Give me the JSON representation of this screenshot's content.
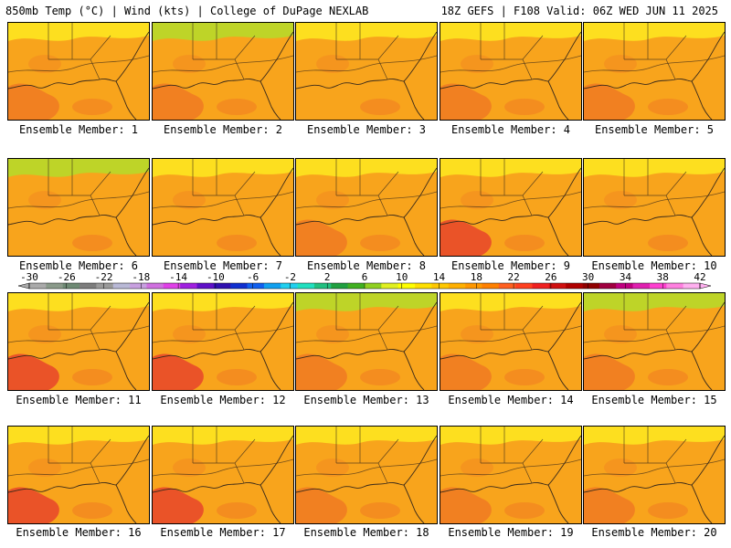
{
  "header": {
    "left": "850mb Temp (°C) | Wind (kts) | College of DuPage NEXLAB",
    "right": "18Z GEFS | F108 Valid: 06Z WED JUN 11 2025"
  },
  "members": [
    {
      "label": "Ensemble Member: 1",
      "tone": "orange",
      "cool_north": "yellow",
      "warm_sw": "orange-red"
    },
    {
      "label": "Ensemble Member: 2",
      "tone": "orange",
      "cool_north": "yellow-green",
      "warm_sw": "orange-red"
    },
    {
      "label": "Ensemble Member: 3",
      "tone": "orange",
      "cool_north": "yellow",
      "warm_sw": "orange"
    },
    {
      "label": "Ensemble Member: 4",
      "tone": "orange",
      "cool_north": "yellow",
      "warm_sw": "orange-red"
    },
    {
      "label": "Ensemble Member: 5",
      "tone": "orange",
      "cool_north": "yellow",
      "warm_sw": "orange-red"
    },
    {
      "label": "Ensemble Member: 6",
      "tone": "orange",
      "cool_north": "yellow-green",
      "warm_sw": "orange"
    },
    {
      "label": "Ensemble Member: 7",
      "tone": "orange",
      "cool_north": "yellow",
      "warm_sw": "orange"
    },
    {
      "label": "Ensemble Member: 8",
      "tone": "orange",
      "cool_north": "yellow",
      "warm_sw": "orange-red"
    },
    {
      "label": "Ensemble Member: 9",
      "tone": "orange",
      "cool_north": "yellow",
      "warm_sw": "red"
    },
    {
      "label": "Ensemble Member: 10",
      "tone": "orange",
      "cool_north": "yellow",
      "warm_sw": "orange"
    },
    {
      "label": "Ensemble Member: 11",
      "tone": "orange",
      "cool_north": "yellow",
      "warm_sw": "red"
    },
    {
      "label": "Ensemble Member: 12",
      "tone": "orange",
      "cool_north": "yellow",
      "warm_sw": "red"
    },
    {
      "label": "Ensemble Member: 13",
      "tone": "orange",
      "cool_north": "yellow-green",
      "warm_sw": "orange-red"
    },
    {
      "label": "Ensemble Member: 14",
      "tone": "orange",
      "cool_north": "yellow",
      "warm_sw": "orange-red"
    },
    {
      "label": "Ensemble Member: 15",
      "tone": "orange",
      "cool_north": "yellow-green",
      "warm_sw": "orange-red"
    },
    {
      "label": "Ensemble Member: 16",
      "tone": "orange",
      "cool_north": "yellow",
      "warm_sw": "red"
    },
    {
      "label": "Ensemble Member: 17",
      "tone": "orange",
      "cool_north": "yellow",
      "warm_sw": "red"
    },
    {
      "label": "Ensemble Member: 18",
      "tone": "orange",
      "cool_north": "yellow",
      "warm_sw": "orange-red"
    },
    {
      "label": "Ensemble Member: 19",
      "tone": "orange",
      "cool_north": "yellow",
      "warm_sw": "orange-red"
    },
    {
      "label": "Ensemble Member: 20",
      "tone": "orange",
      "cool_north": "yellow",
      "warm_sw": "orange-red"
    }
  ],
  "colorbar": {
    "ticks": [
      "-30",
      "-26",
      "-22",
      "-18",
      "-14",
      "-10",
      "-6",
      "-2",
      "2",
      "6",
      "10",
      "14",
      "18",
      "22",
      "26",
      "30",
      "34",
      "38",
      "42"
    ],
    "colors": [
      "#aaaaaa",
      "#8a9a8a",
      "#6e8a74",
      "#7d7d7d",
      "#9a9a9a",
      "#b9b9d6",
      "#c8a0e0",
      "#d070e0",
      "#e040e8",
      "#a020e0",
      "#6010c8",
      "#3010b0",
      "#1030d0",
      "#1060f0",
      "#10a0f0",
      "#20d0f0",
      "#20e0c0",
      "#20c080",
      "#20a040",
      "#40b020",
      "#90d020",
      "#e0f020",
      "#ffff00",
      "#ffe000",
      "#ffc800",
      "#ffb000",
      "#ff9800",
      "#ff8000",
      "#ff6020",
      "#ff4020",
      "#f02020",
      "#d01010",
      "#b00000",
      "#900000",
      "#a00040",
      "#c00080",
      "#e020b0",
      "#ff40d0",
      "#ff80e0",
      "#ffb0f0"
    ]
  },
  "palette": {
    "base": "#f8a41c",
    "yellow": "#fde620",
    "yellow_green": "#b7d92a",
    "orange_red": "#f07a22",
    "red": "#e8452a",
    "coast": "#3a2a1a"
  }
}
